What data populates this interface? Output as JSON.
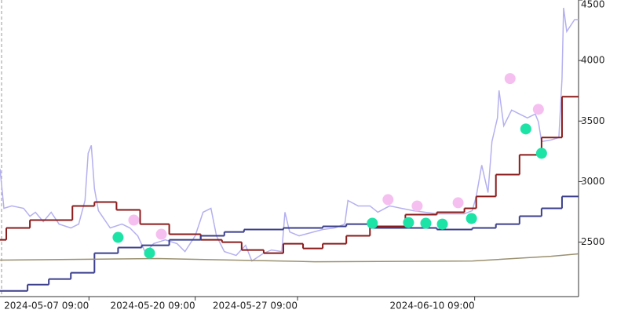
{
  "chart_data": {
    "type": "line",
    "xlim": [
      0,
      735
    ],
    "ylim": [
      2050,
      4500
    ],
    "yticks": [
      2500,
      3000,
      3500,
      4000,
      4500
    ],
    "xticks": [
      {
        "value": 113,
        "label": "2024-05-07 09:00"
      },
      {
        "value": 248,
        "label": "2024-05-20 09:00"
      },
      {
        "value": 378,
        "label": "2024-05-27 09:00"
      },
      {
        "value": 603,
        "label": "2024-06-10 09:00"
      }
    ],
    "series": [
      {
        "kind": "line",
        "color": "#b4b0f0",
        "x": [
          0,
          5,
          15,
          30,
          38,
          45,
          55,
          65,
          75,
          90,
          100,
          108,
          112,
          116,
          120,
          125,
          140,
          155,
          165,
          175,
          185,
          195,
          210,
          225,
          235,
          248,
          258,
          268,
          275,
          285,
          300,
          312,
          320,
          335,
          345,
          358,
          362,
          368,
          380,
          395,
          410,
          425,
          438,
          442,
          455,
          470,
          480,
          495,
          510,
          525,
          540,
          555,
          575,
          590,
          600,
          605,
          612,
          620,
          625,
          632,
          634,
          640,
          650,
          660,
          670,
          680,
          684,
          688,
          700,
          710,
          714,
          716,
          720,
          730,
          735
        ],
        "values": [
          3104,
          2779,
          2799,
          2779,
          2714,
          2747,
          2669,
          2747,
          2649,
          2617,
          2649,
          2844,
          3234,
          3299,
          2942,
          2760,
          2617,
          2649,
          2617,
          2552,
          2409,
          2487,
          2519,
          2487,
          2422,
          2552,
          2747,
          2779,
          2552,
          2422,
          2390,
          2474,
          2344,
          2409,
          2435,
          2422,
          2747,
          2584,
          2552,
          2578,
          2604,
          2617,
          2649,
          2844,
          2799,
          2799,
          2747,
          2799,
          2779,
          2760,
          2747,
          2734,
          2734,
          2734,
          2760,
          2877,
          3136,
          2909,
          3331,
          3526,
          3753,
          3461,
          3591,
          3558,
          3526,
          3558,
          3494,
          3331,
          3344,
          3364,
          3851,
          4435,
          4240,
          4338,
          4338
        ]
      },
      {
        "kind": "step",
        "color": "#8b1a1a",
        "x": [
          0,
          8,
          38,
          92,
          120,
          148,
          178,
          215,
          255,
          282,
          307,
          335,
          360,
          385,
          410,
          440,
          470,
          515,
          555,
          590,
          605,
          630,
          660,
          688,
          714
        ],
        "values": [
          2519,
          2617,
          2682,
          2799,
          2831,
          2766,
          2649,
          2565,
          2519,
          2500,
          2435,
          2409,
          2487,
          2448,
          2487,
          2552,
          2630,
          2727,
          2747,
          2779,
          2877,
          3058,
          3221,
          3364,
          3701
        ]
      },
      {
        "kind": "step",
        "color": "#3b3f8c",
        "x": [
          0,
          35,
          62,
          90,
          120,
          150,
          180,
          215,
          255,
          285,
          310,
          360,
          410,
          440,
          470,
          520,
          555,
          600,
          630,
          660,
          688,
          714
        ],
        "values": [
          2097,
          2149,
          2195,
          2247,
          2409,
          2455,
          2474,
          2519,
          2552,
          2584,
          2604,
          2617,
          2630,
          2649,
          2617,
          2617,
          2604,
          2617,
          2649,
          2714,
          2779,
          2877
        ]
      },
      {
        "kind": "line",
        "color": "#9a9070",
        "x": [
          0,
          200,
          400,
          600,
          700,
          735
        ],
        "values": [
          2351,
          2364,
          2338,
          2344,
          2383,
          2403
        ]
      },
      {
        "kind": "marker",
        "color": "#1ee3a6",
        "x": [
          150,
          190,
          473,
          519,
          541,
          562,
          599,
          668,
          688
        ],
        "values": [
          2539,
          2409,
          2656,
          2662,
          2656,
          2649,
          2695,
          3435,
          3234
        ]
      },
      {
        "kind": "marker",
        "color": "#f5c0f0",
        "x": [
          170,
          205,
          493,
          530,
          582,
          648,
          684
        ],
        "values": [
          2682,
          2565,
          2851,
          2799,
          2825,
          3851,
          3597
        ]
      }
    ]
  }
}
